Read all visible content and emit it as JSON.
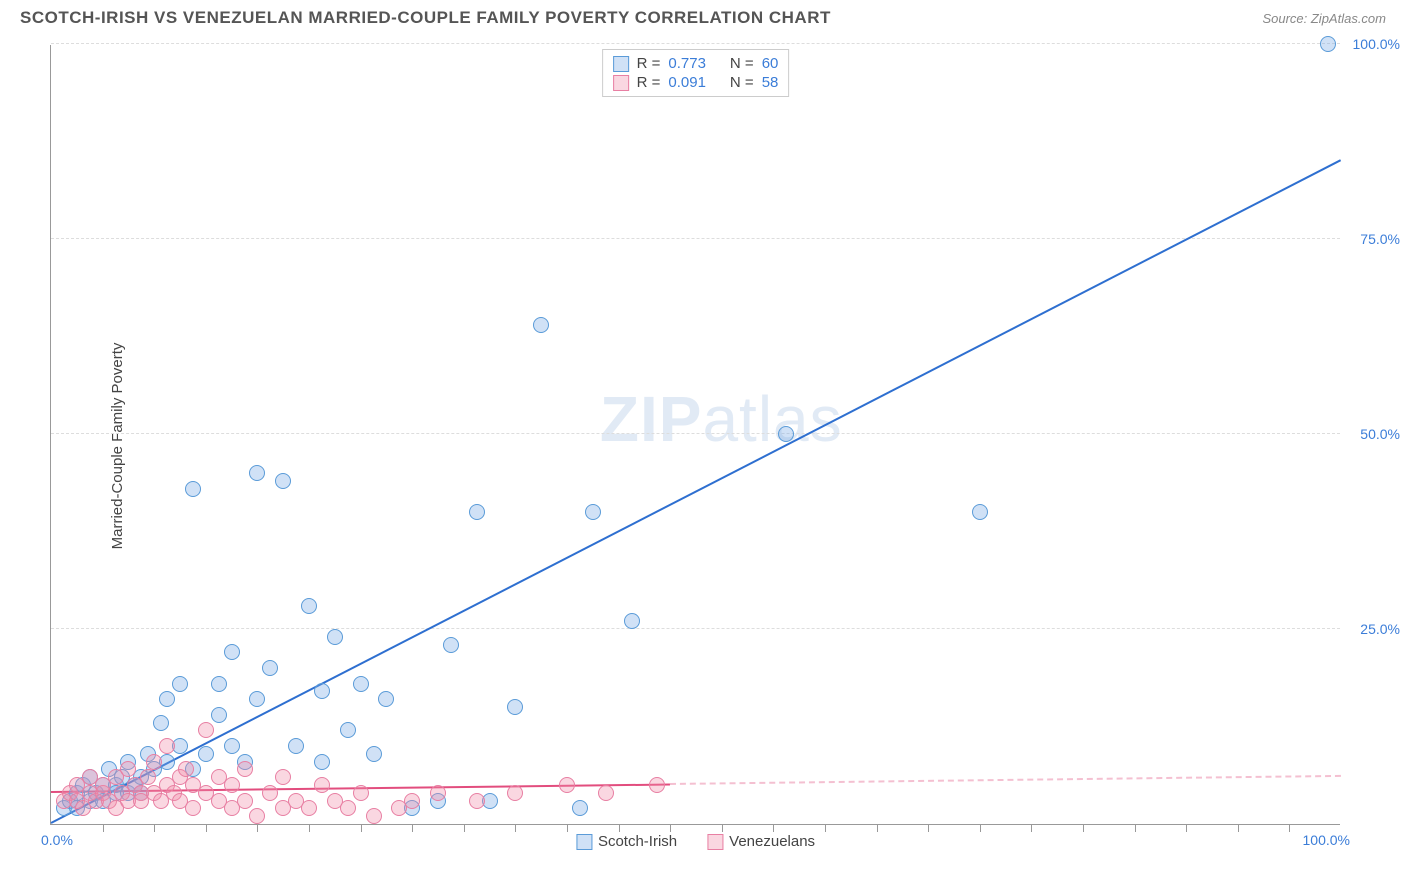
{
  "title": "SCOTCH-IRISH VS VENEZUELAN MARRIED-COUPLE FAMILY POVERTY CORRELATION CHART",
  "source_prefix": "Source: ",
  "source": "ZipAtlas.com",
  "ylabel": "Married-Couple Family Poverty",
  "watermark_a": "ZIP",
  "watermark_b": "atlas",
  "chart": {
    "type": "scatter",
    "xlim": [
      0,
      100
    ],
    "ylim": [
      0,
      100
    ],
    "x_tick_start": "0.0%",
    "x_tick_end": "100.0%",
    "x_minor_ticks": [
      4,
      8,
      12,
      16,
      20,
      24,
      28,
      32,
      36,
      40,
      44,
      48,
      52,
      56,
      60,
      64,
      68,
      72,
      76,
      80,
      84,
      88,
      92,
      96
    ],
    "y_ticks": [
      {
        "v": 25,
        "label": "25.0%"
      },
      {
        "v": 50,
        "label": "50.0%"
      },
      {
        "v": 75,
        "label": "75.0%"
      },
      {
        "v": 100,
        "label": "100.0%"
      }
    ],
    "grid_color": "#dddddd",
    "axis_color": "#999999",
    "tick_label_color": "#3b7dd8",
    "label_fontsize": 15,
    "tick_fontsize": 14,
    "background_color": "#ffffff",
    "series": [
      {
        "name": "Scotch-Irish",
        "color_fill": "rgba(120,170,230,0.35)",
        "color_stroke": "#5a9bd8",
        "line_color": "#2e6fd0",
        "marker_radius": 8,
        "R": "0.773",
        "N": "60",
        "regression": {
          "x1": 0,
          "y1": 0,
          "x2": 100,
          "y2": 85,
          "dash_from_x": null
        },
        "points": [
          [
            1,
            2
          ],
          [
            1.5,
            3
          ],
          [
            2,
            4
          ],
          [
            2,
            2
          ],
          [
            2.5,
            5
          ],
          [
            3,
            3
          ],
          [
            3,
            6
          ],
          [
            3.5,
            4
          ],
          [
            4,
            5
          ],
          [
            4,
            3
          ],
          [
            4.5,
            7
          ],
          [
            5,
            5
          ],
          [
            5,
            4
          ],
          [
            5.5,
            6
          ],
          [
            6,
            4
          ],
          [
            6,
            8
          ],
          [
            6.5,
            5
          ],
          [
            7,
            6
          ],
          [
            7,
            4
          ],
          [
            7.5,
            9
          ],
          [
            8,
            7
          ],
          [
            8.5,
            13
          ],
          [
            9,
            16
          ],
          [
            9,
            8
          ],
          [
            10,
            10
          ],
          [
            10,
            18
          ],
          [
            11,
            7
          ],
          [
            11,
            43
          ],
          [
            12,
            9
          ],
          [
            13,
            18
          ],
          [
            13,
            14
          ],
          [
            14,
            22
          ],
          [
            14,
            10
          ],
          [
            15,
            8
          ],
          [
            16,
            45
          ],
          [
            16,
            16
          ],
          [
            17,
            20
          ],
          [
            18,
            44
          ],
          [
            19,
            10
          ],
          [
            20,
            28
          ],
          [
            21,
            17
          ],
          [
            21,
            8
          ],
          [
            22,
            24
          ],
          [
            23,
            12
          ],
          [
            24,
            18
          ],
          [
            25,
            9
          ],
          [
            26,
            16
          ],
          [
            28,
            2
          ],
          [
            30,
            3
          ],
          [
            31,
            23
          ],
          [
            33,
            40
          ],
          [
            34,
            3
          ],
          [
            36,
            15
          ],
          [
            38,
            64
          ],
          [
            41,
            2
          ],
          [
            42,
            40
          ],
          [
            57,
            50
          ],
          [
            72,
            40
          ],
          [
            99,
            100
          ],
          [
            45,
            26
          ]
        ]
      },
      {
        "name": "Venezuelans",
        "color_fill": "rgba(240,140,170,0.35)",
        "color_stroke": "#e87fa3",
        "line_color": "#e24d7e",
        "marker_radius": 8,
        "R": "0.091",
        "N": "58",
        "regression": {
          "x1": 0,
          "y1": 4,
          "x2": 100,
          "y2": 6,
          "dash_from_x": 48
        },
        "points": [
          [
            1,
            3
          ],
          [
            1.5,
            4
          ],
          [
            2,
            3
          ],
          [
            2,
            5
          ],
          [
            2.5,
            2
          ],
          [
            3,
            4
          ],
          [
            3,
            6
          ],
          [
            3.5,
            3
          ],
          [
            4,
            4
          ],
          [
            4,
            5
          ],
          [
            4.5,
            3
          ],
          [
            5,
            6
          ],
          [
            5,
            2
          ],
          [
            5.5,
            4
          ],
          [
            6,
            3
          ],
          [
            6,
            7
          ],
          [
            6.5,
            5
          ],
          [
            7,
            4
          ],
          [
            7,
            3
          ],
          [
            7.5,
            6
          ],
          [
            8,
            8
          ],
          [
            8,
            4
          ],
          [
            8.5,
            3
          ],
          [
            9,
            5
          ],
          [
            9,
            10
          ],
          [
            9.5,
            4
          ],
          [
            10,
            6
          ],
          [
            10,
            3
          ],
          [
            10.5,
            7
          ],
          [
            11,
            2
          ],
          [
            11,
            5
          ],
          [
            12,
            4
          ],
          [
            12,
            12
          ],
          [
            13,
            3
          ],
          [
            13,
            6
          ],
          [
            14,
            2
          ],
          [
            14,
            5
          ],
          [
            15,
            7
          ],
          [
            15,
            3
          ],
          [
            16,
            1
          ],
          [
            17,
            4
          ],
          [
            18,
            2
          ],
          [
            18,
            6
          ],
          [
            19,
            3
          ],
          [
            20,
            2
          ],
          [
            21,
            5
          ],
          [
            22,
            3
          ],
          [
            23,
            2
          ],
          [
            24,
            4
          ],
          [
            25,
            1
          ],
          [
            27,
            2
          ],
          [
            28,
            3
          ],
          [
            30,
            4
          ],
          [
            33,
            3
          ],
          [
            36,
            4
          ],
          [
            40,
            5
          ],
          [
            43,
            4
          ],
          [
            47,
            5
          ]
        ]
      }
    ]
  },
  "legend_top": {
    "R_label": "R =",
    "N_label": "N ="
  },
  "legend_bottom_labels": [
    "Scotch-Irish",
    "Venezuelans"
  ]
}
